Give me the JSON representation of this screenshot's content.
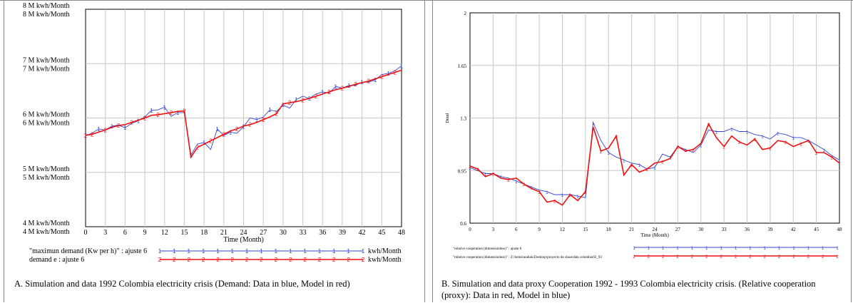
{
  "captions": {
    "a": "A. Simulation and data 1992 Colombia electricity crisis (Demand: Data in blue, Model in red)",
    "b": "B. Simulation and data proxy Cooperation 1992 - 1993 Colombia electricity crisis. (Relative cooperation (proxy): Data in red, Model in blue)"
  },
  "colors": {
    "blue": "#3344cc",
    "red": "#ee1111",
    "grid": "#c8c8c8"
  },
  "chart_data": [
    {
      "type": "line",
      "title": "",
      "xlabel": "Time (Month)",
      "ylabel": "",
      "xlim": [
        0,
        48
      ],
      "ylim": [
        4,
        8
      ],
      "x_ticks": [
        0,
        3,
        6,
        9,
        12,
        15,
        18,
        21,
        24,
        27,
        30,
        33,
        36,
        39,
        42,
        45,
        48
      ],
      "y_ticks": [
        {
          "value": 8,
          "labels": [
            "8 M  kwh/Month",
            "8 M  kwh/Month"
          ]
        },
        {
          "value": 7,
          "labels": [
            "7 M  kwh/Month",
            "7 M  kwh/Month"
          ]
        },
        {
          "value": 6,
          "labels": [
            "6 M  kwh/Month",
            "6 M  kwh/Month"
          ]
        },
        {
          "value": 5,
          "labels": [
            "5 M  kwh/Month",
            "5 M  kwh/Month"
          ]
        },
        {
          "value": 4,
          "labels": [
            "4 M  kwh/Month",
            "4 M  kwh/Month"
          ]
        }
      ],
      "series": [
        {
          "name": "\"maximun demand (Kw per h)\" : ajuste 6",
          "unit": "kwh/Month",
          "marker": "1",
          "color": "#3344cc",
          "x": [
            0,
            1,
            2,
            3,
            4,
            5,
            6,
            7,
            8,
            9,
            10,
            11,
            12,
            13,
            14,
            15,
            16,
            17,
            18,
            19,
            20,
            21,
            22,
            23,
            24,
            25,
            26,
            27,
            28,
            29,
            30,
            31,
            32,
            33,
            34,
            35,
            36,
            37,
            38,
            39,
            40,
            41,
            42,
            43,
            44,
            45,
            46,
            47,
            48
          ],
          "values": [
            5.68,
            5.72,
            5.8,
            5.78,
            5.85,
            5.87,
            5.82,
            5.9,
            5.95,
            6.02,
            6.14,
            6.15,
            6.2,
            6.03,
            6.1,
            6.1,
            5.32,
            5.52,
            5.55,
            5.42,
            5.8,
            5.68,
            5.74,
            5.72,
            5.84,
            6.0,
            5.97,
            6.02,
            6.15,
            6.12,
            6.24,
            6.18,
            6.34,
            6.4,
            6.36,
            6.44,
            6.48,
            6.46,
            6.58,
            6.55,
            6.6,
            6.6,
            6.66,
            6.66,
            6.7,
            6.8,
            6.82,
            6.87,
            6.96
          ]
        },
        {
          "name": "demand e : ajuste 6",
          "unit": "kwh/Month",
          "marker": "2",
          "color": "#ee1111",
          "x": [
            0,
            1,
            2,
            3,
            4,
            5,
            6,
            7,
            8,
            9,
            10,
            11,
            12,
            13,
            14,
            15,
            16,
            17,
            18,
            19,
            20,
            21,
            22,
            23,
            24,
            25,
            26,
            27,
            28,
            29,
            30,
            31,
            32,
            33,
            34,
            35,
            36,
            37,
            38,
            39,
            40,
            41,
            42,
            43,
            44,
            45,
            46,
            47,
            48
          ],
          "values": [
            5.68,
            5.7,
            5.74,
            5.78,
            5.83,
            5.86,
            5.88,
            5.92,
            5.96,
            6.0,
            6.05,
            6.06,
            6.08,
            6.1,
            6.12,
            6.13,
            5.28,
            5.46,
            5.52,
            5.58,
            5.64,
            5.7,
            5.76,
            5.8,
            5.85,
            5.88,
            5.92,
            5.97,
            6.02,
            6.08,
            6.26,
            6.28,
            6.3,
            6.33,
            6.36,
            6.4,
            6.44,
            6.48,
            6.52,
            6.55,
            6.58,
            6.62,
            6.65,
            6.68,
            6.72,
            6.76,
            6.8,
            6.84,
            6.88
          ]
        }
      ]
    },
    {
      "type": "line",
      "title": "",
      "xlabel": "Time (Month)",
      "ylabel": "Dmnl",
      "xlim": [
        0,
        48
      ],
      "ylim": [
        0.6,
        2
      ],
      "x_ticks": [
        0,
        3,
        6,
        9,
        12,
        15,
        18,
        21,
        24,
        27,
        30,
        33,
        36,
        39,
        42,
        45,
        48
      ],
      "y_ticks": [
        {
          "value": 2,
          "labels": [
            "2"
          ]
        },
        {
          "value": 1.65,
          "labels": [
            "1.65"
          ]
        },
        {
          "value": 1.3,
          "labels": [
            "1.3"
          ]
        },
        {
          "value": 0.95,
          "labels": [
            "0.95"
          ]
        },
        {
          "value": 0.6,
          "labels": [
            "0.6"
          ]
        }
      ],
      "series": [
        {
          "name": "\"relative cooperation (dimensionless)\" : ajuste 6",
          "unit": "",
          "marker": "1",
          "color": "#3344cc",
          "x": [
            0,
            1,
            2,
            3,
            4,
            5,
            6,
            7,
            8,
            9,
            10,
            11,
            12,
            13,
            14,
            15,
            16,
            17,
            18,
            19,
            20,
            21,
            22,
            23,
            24,
            25,
            26,
            27,
            28,
            29,
            30,
            31,
            32,
            33,
            34,
            35,
            36,
            37,
            38,
            39,
            40,
            41,
            42,
            43,
            44,
            45,
            46,
            47,
            48
          ],
          "values": [
            0.97,
            0.95,
            0.93,
            0.93,
            0.91,
            0.9,
            0.88,
            0.86,
            0.84,
            0.82,
            0.81,
            0.79,
            0.79,
            0.79,
            0.78,
            0.77,
            1.27,
            1.15,
            1.07,
            1.04,
            1.02,
            1.0,
            0.99,
            0.96,
            0.97,
            1.06,
            1.04,
            1.11,
            1.09,
            1.07,
            1.12,
            1.22,
            1.21,
            1.21,
            1.23,
            1.21,
            1.21,
            1.19,
            1.18,
            1.16,
            1.2,
            1.19,
            1.17,
            1.17,
            1.15,
            1.12,
            1.09,
            1.05,
            1.02
          ]
        },
        {
          "name": "\"relative cooperation (dimensionless)\" : Z:\\home\\andiok\\Desktop\\proyecto de clase\\data colombia92_93",
          "unit": "",
          "marker": "2",
          "color": "#ee1111",
          "x": [
            0,
            1,
            2,
            3,
            4,
            5,
            6,
            7,
            8,
            9,
            10,
            11,
            12,
            13,
            14,
            15,
            16,
            17,
            18,
            19,
            20,
            21,
            22,
            23,
            24,
            25,
            26,
            27,
            28,
            29,
            30,
            31,
            32,
            33,
            34,
            35,
            36,
            37,
            38,
            39,
            40,
            41,
            42,
            43,
            44,
            45,
            46,
            47,
            48
          ],
          "values": [
            0.98,
            0.96,
            0.91,
            0.93,
            0.9,
            0.89,
            0.9,
            0.86,
            0.83,
            0.81,
            0.74,
            0.75,
            0.72,
            0.79,
            0.75,
            0.81,
            1.24,
            1.08,
            1.1,
            1.18,
            0.92,
            0.99,
            0.94,
            0.96,
            1.0,
            1.01,
            1.03,
            1.11,
            1.08,
            1.09,
            1.13,
            1.26,
            1.17,
            1.11,
            1.18,
            1.14,
            1.12,
            1.16,
            1.09,
            1.1,
            1.15,
            1.14,
            1.11,
            1.13,
            1.15,
            1.07,
            1.07,
            1.04,
            1.0
          ]
        }
      ]
    }
  ]
}
